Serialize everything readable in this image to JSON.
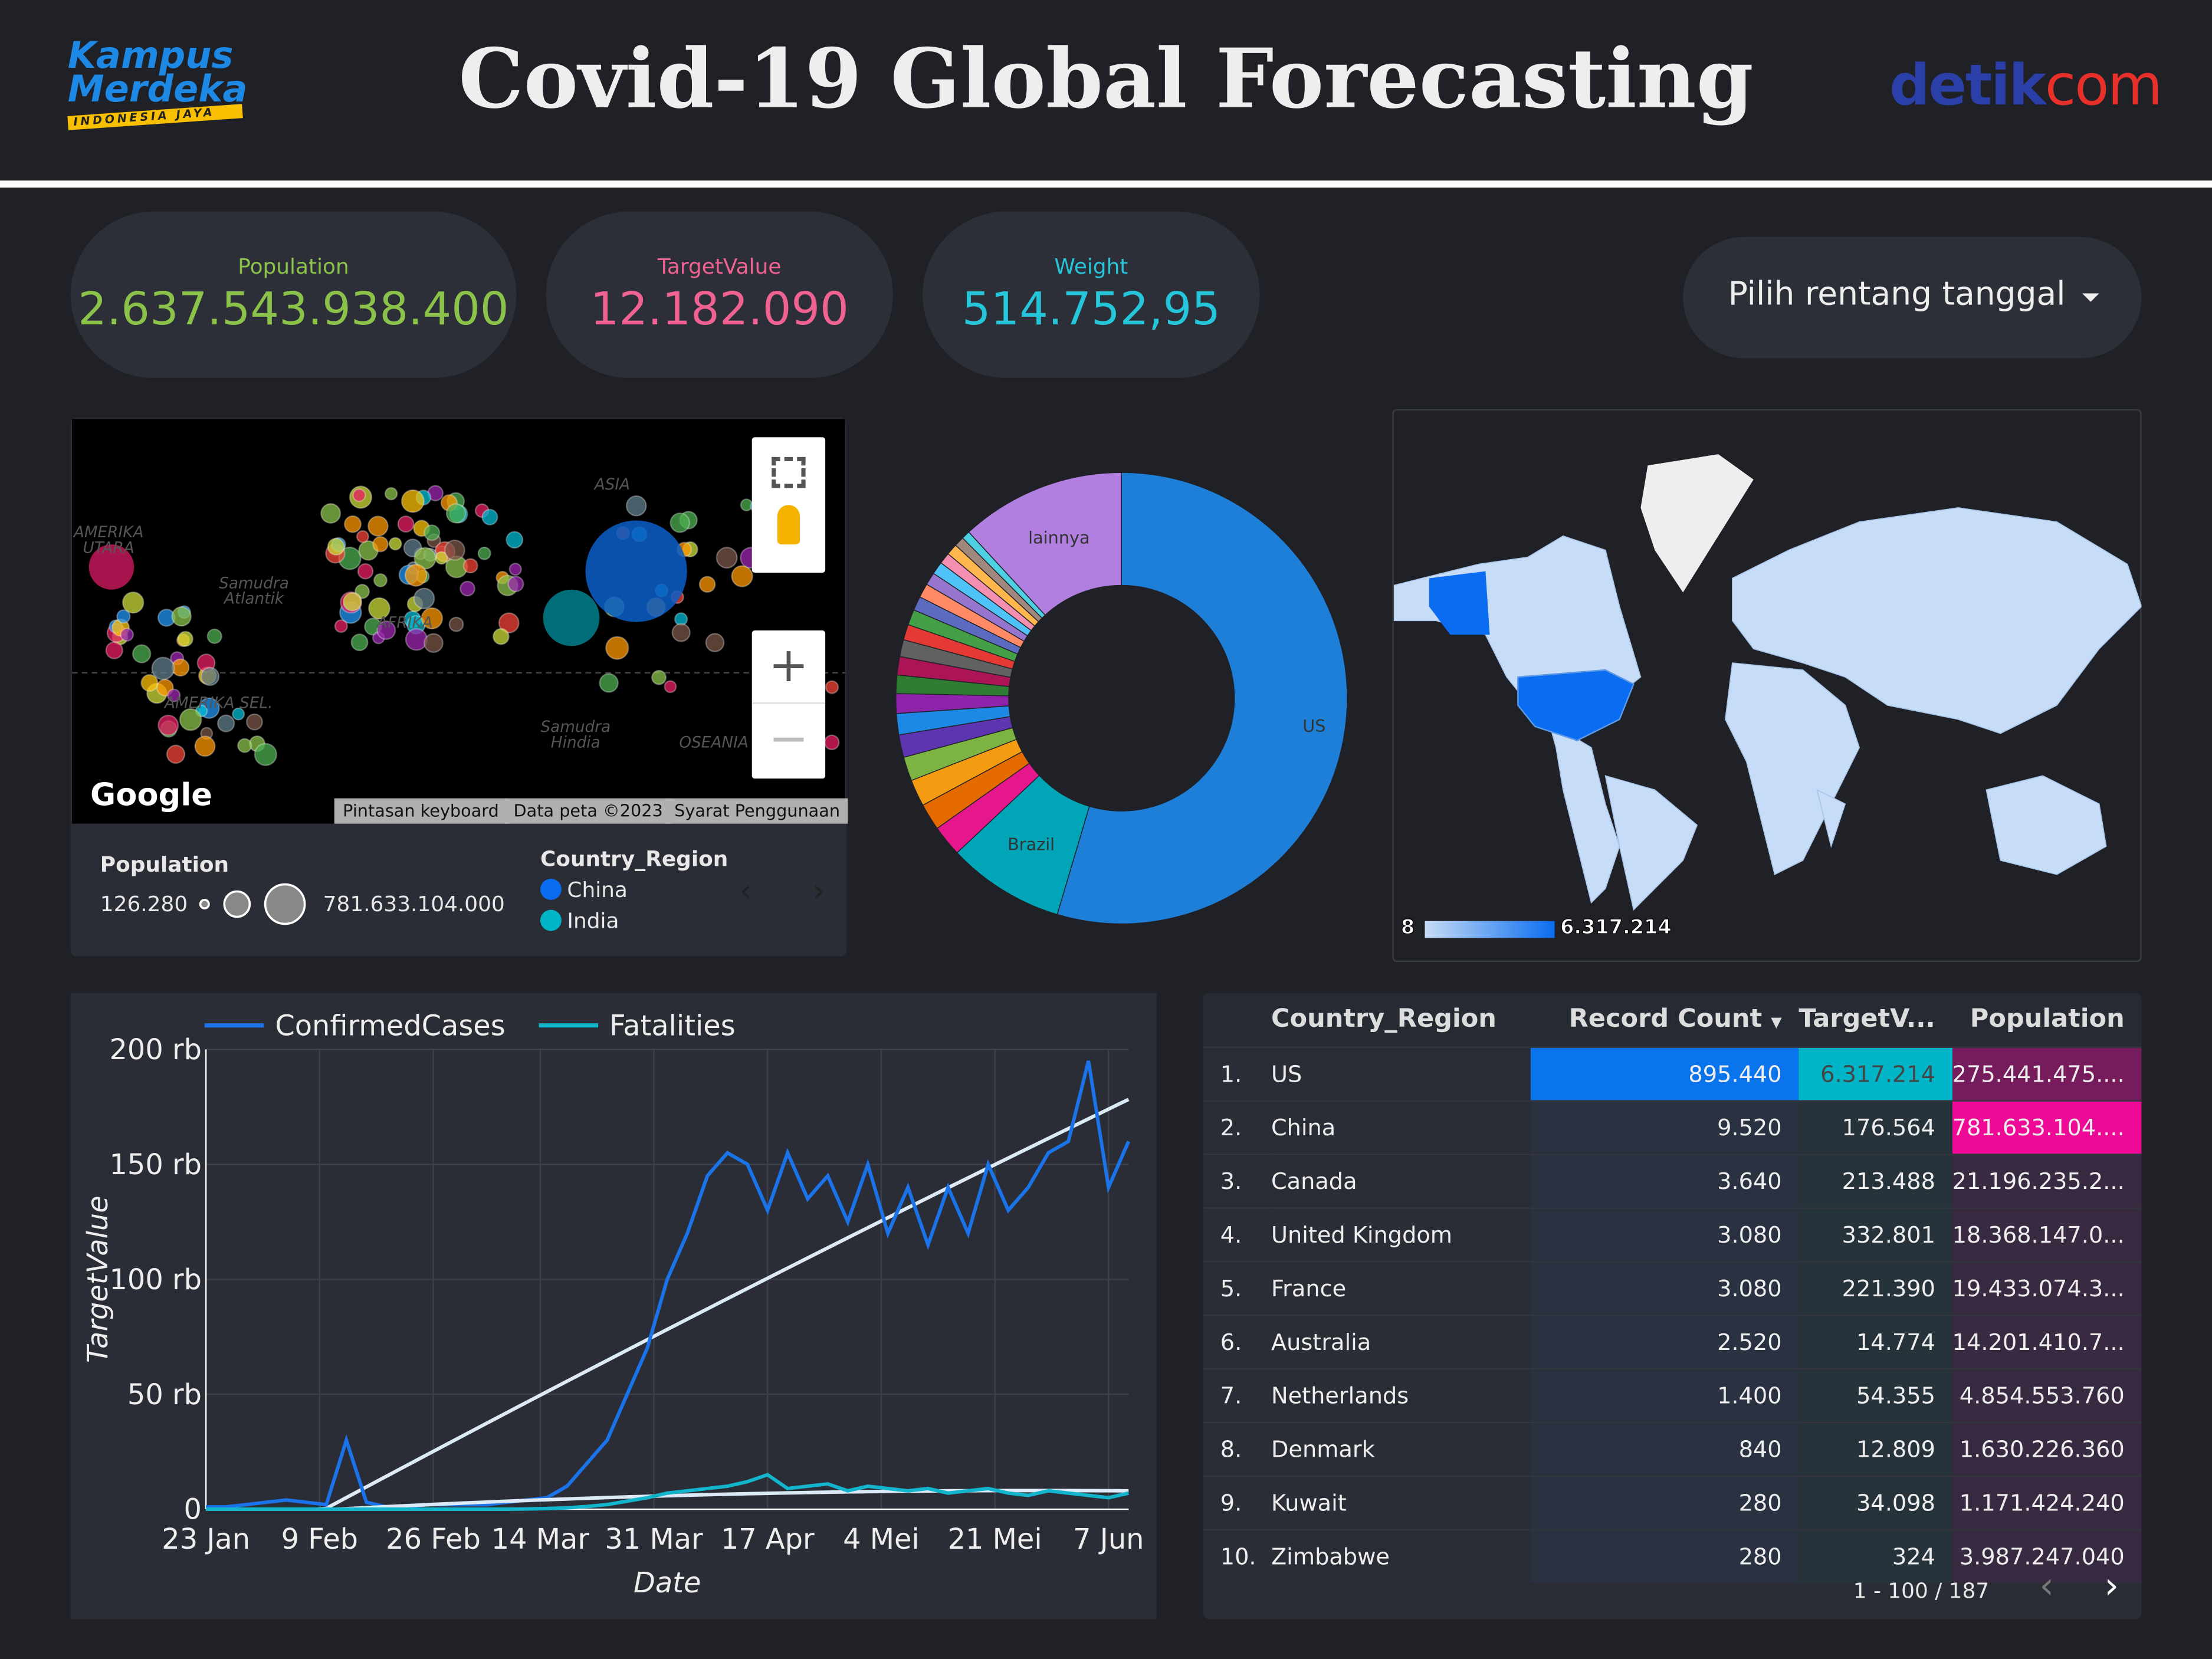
{
  "header": {
    "title": "Covid-19 Global Forecasting",
    "logo_left": "Kampus Merdeka",
    "logo_left_sub": "INDONESIA JAYA",
    "logo_right_a": "detik",
    "logo_right_b": "com"
  },
  "kpis": [
    {
      "label": "Population",
      "value": "2.637.543.938.400",
      "color": "#8bc34a"
    },
    {
      "label": "TargetValue",
      "value": "12.182.090",
      "color": "#f06292"
    },
    {
      "label": "Weight",
      "value": "514.752,95",
      "color": "#26c6da"
    }
  ],
  "date_picker": {
    "label": "Pilih rentang tanggal"
  },
  "bubble_map": {
    "labels": {
      "america_n": "AMERIKA UTARA",
      "atlantic": "Samudra Atlantik",
      "asia": "ASIA",
      "africa": "AFRIKA",
      "america_s": "AMERIKA SEL.",
      "indian": "Samudra Hindia",
      "oceania": "OSEANIA"
    },
    "google": "Google",
    "attrib": [
      "Pintasan keyboard",
      "Data peta ©2023",
      "Syarat Penggunaan"
    ],
    "legend": {
      "size_title": "Population",
      "size_min": "126.280",
      "size_max": "781.633.104.000",
      "color_title": "Country_Region",
      "colors": [
        {
          "name": "China",
          "color": "#0a6cf0"
        },
        {
          "name": "India",
          "color": "#00b5c8"
        }
      ]
    }
  },
  "donut": {
    "slices": [
      {
        "label": "US",
        "value": 54,
        "color": "#1e7fd8"
      },
      {
        "label": "Brazil",
        "value": 8.3,
        "color": "#00a5b8"
      },
      {
        "label": "",
        "value": 2.2,
        "color": "#e6168c"
      },
      {
        "label": "",
        "value": 1.9,
        "color": "#e56a00"
      },
      {
        "label": "",
        "value": 1.9,
        "color": "#f39c12"
      },
      {
        "label": "",
        "value": 1.7,
        "color": "#7cb342"
      },
      {
        "label": "",
        "value": 1.6,
        "color": "#5e35b1"
      },
      {
        "label": "",
        "value": 1.5,
        "color": "#1e88e5"
      },
      {
        "label": "",
        "value": 1.4,
        "color": "#8e24aa"
      },
      {
        "label": "",
        "value": 1.3,
        "color": "#2e7d32"
      },
      {
        "label": "",
        "value": 1.3,
        "color": "#ad1457"
      },
      {
        "label": "",
        "value": 1.2,
        "color": "#616161"
      },
      {
        "label": "",
        "value": 1.1,
        "color": "#e53935"
      },
      {
        "label": "",
        "value": 1.1,
        "color": "#43a047"
      },
      {
        "label": "",
        "value": 1.0,
        "color": "#5c6bc0"
      },
      {
        "label": "",
        "value": 1.0,
        "color": "#ff8a65"
      },
      {
        "label": "",
        "value": 0.9,
        "color": "#9575cd"
      },
      {
        "label": "",
        "value": 0.9,
        "color": "#4fc3f7"
      },
      {
        "label": "",
        "value": 0.8,
        "color": "#f48fb1"
      },
      {
        "label": "",
        "value": 0.8,
        "color": "#ffb74d"
      },
      {
        "label": "",
        "value": 0.7,
        "color": "#a1887f"
      },
      {
        "label": "",
        "value": 0.6,
        "color": "#4dd0e1"
      },
      {
        "label": "lainnya",
        "value": 11.7,
        "color": "#b07fe0"
      }
    ]
  },
  "geo_map": {
    "legend_min": "8",
    "legend_max": "6.317.214",
    "highlight": "US",
    "base_color": "#c6dcf7",
    "high_color": "#0a6cf0"
  },
  "chart_data": {
    "type": "line",
    "ylabel": "TargetValue",
    "xlabel": "Date",
    "ylim": [
      0,
      200000
    ],
    "yticks": [
      "0",
      "50 rb",
      "100 rb",
      "150 rb",
      "200 rb"
    ],
    "xticks": [
      "23 Jan",
      "9 Feb",
      "26 Feb",
      "14 Mar",
      "31 Mar",
      "17 Apr",
      "4 Mei",
      "21 Mei",
      "7 Jun"
    ],
    "x": [
      "23 Jan",
      "26 Jan",
      "29 Jan",
      "1 Feb",
      "4 Feb",
      "7 Feb",
      "10 Feb",
      "13 Feb",
      "16 Feb",
      "19 Feb",
      "22 Feb",
      "25 Feb",
      "28 Feb",
      "2 Mar",
      "5 Mar",
      "8 Mar",
      "11 Mar",
      "14 Mar",
      "17 Mar",
      "20 Mar",
      "23 Mar",
      "26 Mar",
      "29 Mar",
      "1 Apr",
      "4 Apr",
      "7 Apr",
      "10 Apr",
      "13 Apr",
      "16 Apr",
      "19 Apr",
      "22 Apr",
      "25 Apr",
      "28 Apr",
      "1 Mei",
      "4 Mei",
      "7 Mei",
      "10 Mei",
      "13 Mei",
      "16 Mei",
      "19 Mei",
      "22 Mei",
      "25 Mei",
      "28 Mei",
      "31 Mei",
      "3 Jun",
      "6 Jun",
      "9 Jun"
    ],
    "series": [
      {
        "name": "ConfirmedCases",
        "color": "#1a73e8",
        "trend_color": "#dce9f7",
        "values": [
          1000,
          1000,
          2000,
          3000,
          4000,
          3000,
          2000,
          30000,
          3000,
          1000,
          1000,
          2000,
          2000,
          2000,
          2000,
          3000,
          4000,
          5000,
          10000,
          20000,
          30000,
          50000,
          70000,
          100000,
          120000,
          145000,
          155000,
          150000,
          130000,
          155000,
          135000,
          145000,
          125000,
          150000,
          120000,
          140000,
          115000,
          140000,
          120000,
          150000,
          130000,
          140000,
          155000,
          160000,
          195000,
          140000,
          160000
        ]
      },
      {
        "name": "Fatalities",
        "color": "#12b5cb",
        "trend_color": "#dce9f7",
        "values": [
          0,
          0,
          0,
          0,
          0,
          0,
          0,
          0,
          0,
          0,
          0,
          0,
          0,
          0,
          0,
          0,
          100,
          300,
          600,
          1200,
          2000,
          3500,
          5000,
          7000,
          8000,
          9000,
          10000,
          12000,
          15000,
          9000,
          10000,
          11000,
          8000,
          10000,
          9000,
          8000,
          9000,
          7000,
          8000,
          9000,
          7000,
          6000,
          8000,
          7000,
          6000,
          5000,
          7000
        ]
      }
    ],
    "legend_position": "top",
    "grid": true
  },
  "table": {
    "headers": [
      "Country_Region",
      "Record Count",
      "TargetV...",
      "Population"
    ],
    "rows": [
      [
        "1.",
        "US",
        "895.440",
        "6.317.214",
        "275.441.475...."
      ],
      [
        "2.",
        "China",
        "9.520",
        "176.564",
        "781.633.104...."
      ],
      [
        "3.",
        "Canada",
        "3.640",
        "213.488",
        "21.196.235.2..."
      ],
      [
        "4.",
        "United Kingdom",
        "3.080",
        "332.801",
        "18.368.147.0..."
      ],
      [
        "5.",
        "France",
        "3.080",
        "221.390",
        "19.433.074.3..."
      ],
      [
        "6.",
        "Australia",
        "2.520",
        "14.774",
        "14.201.410.7..."
      ],
      [
        "7.",
        "Netherlands",
        "1.400",
        "54.355",
        "4.854.553.760"
      ],
      [
        "8.",
        "Denmark",
        "840",
        "12.809",
        "1.630.226.360"
      ],
      [
        "9.",
        "Kuwait",
        "280",
        "34.098",
        "1.171.424.240"
      ],
      [
        "10.",
        "Zimbabwe",
        "280",
        "324",
        "3.987.247.040"
      ]
    ],
    "pagination": "1 - 100 / 187"
  }
}
